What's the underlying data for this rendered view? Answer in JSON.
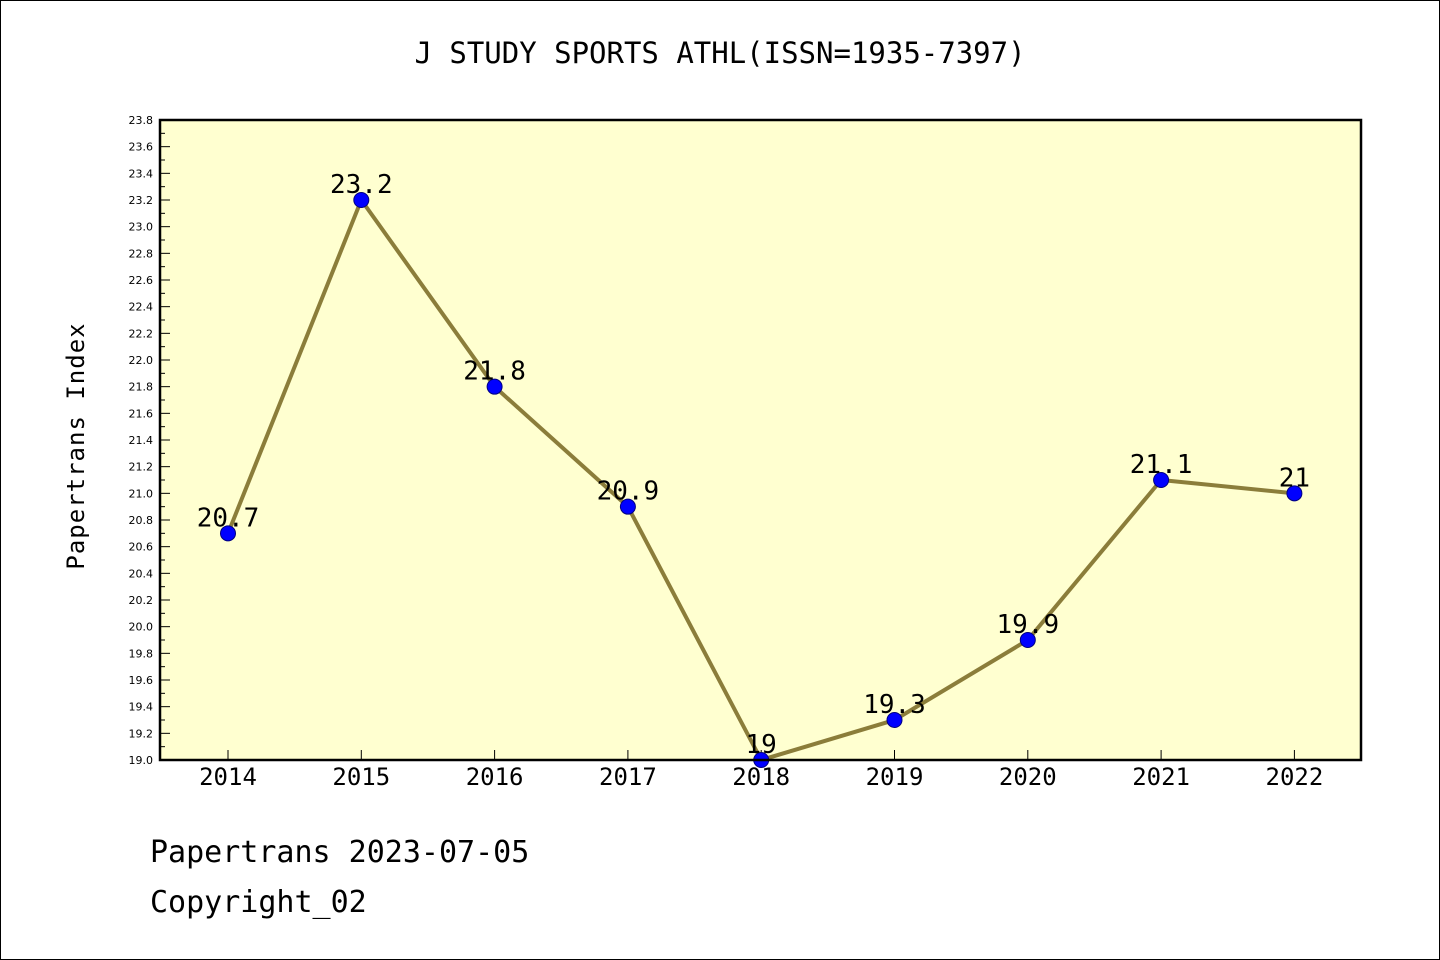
{
  "chart_data": {
    "type": "line",
    "title": "J STUDY SPORTS ATHL(ISSN=1935-7397)",
    "xlabel": "",
    "ylabel": "Papertrans Index",
    "categories": [
      "2014",
      "2015",
      "2016",
      "2017",
      "2018",
      "2019",
      "2020",
      "2021",
      "2022"
    ],
    "series": [
      {
        "values": [
          20.7,
          23.2,
          21.8,
          20.9,
          19.0,
          19.3,
          19.9,
          21.1,
          21.0
        ],
        "labels": [
          "20.7",
          "23.2",
          "21.8",
          "20.9",
          "19",
          "19.3",
          "19.9",
          "21.1",
          "21"
        ]
      }
    ],
    "ylim": [
      19.0,
      23.8
    ],
    "yticks": [
      "19.0",
      "19.2",
      "19.4",
      "19.6",
      "19.8",
      "20.0",
      "20.2",
      "20.4",
      "20.6",
      "20.8",
      "21.0",
      "21.2",
      "21.4",
      "21.6",
      "21.8",
      "22.0",
      "22.2",
      "22.4",
      "22.6",
      "22.8",
      "23.0",
      "23.2",
      "23.4",
      "23.6",
      "23.8"
    ],
    "grid": false,
    "legend": "none",
    "colors": {
      "plot_background": "#ffffd0",
      "line": "#8b7d3a",
      "marker": "#0000ff",
      "marker_edge": "#000080"
    }
  },
  "footer": {
    "line1": "Papertrans 2023-07-05",
    "line2": "Copyright_02"
  }
}
